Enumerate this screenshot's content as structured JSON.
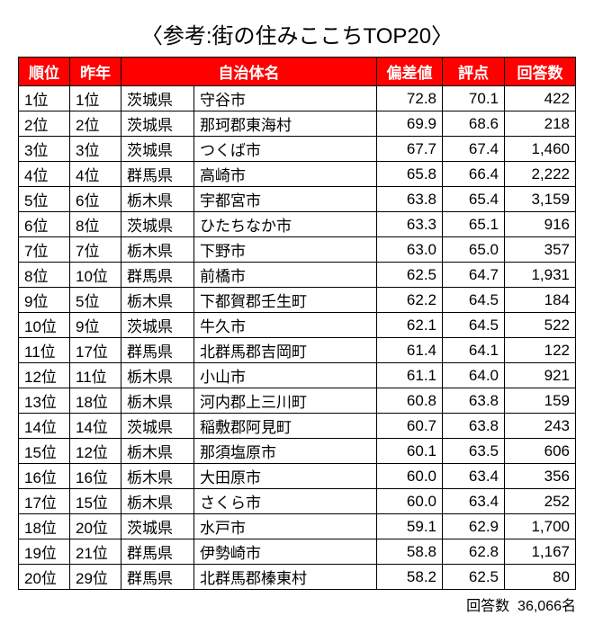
{
  "title": "〈参考:街の住みここちTOP20〉",
  "headers": {
    "rank": "順位",
    "prev": "昨年",
    "municipality": "自治体名",
    "deviation": "偏差値",
    "score": "評点",
    "responses": "回答数"
  },
  "colors": {
    "header_bg": "#ff0000",
    "header_fg": "#ffffff",
    "border": "#000000",
    "cell_bg": "#ffffff"
  },
  "rows": [
    {
      "rank": "1位",
      "prev": "1位",
      "pref": "茨城県",
      "city": "守谷市",
      "dev": "72.8",
      "score": "70.1",
      "resp": "422"
    },
    {
      "rank": "2位",
      "prev": "2位",
      "pref": "茨城県",
      "city": "那珂郡東海村",
      "dev": "69.9",
      "score": "68.6",
      "resp": "218"
    },
    {
      "rank": "3位",
      "prev": "3位",
      "pref": "茨城県",
      "city": "つくば市",
      "dev": "67.7",
      "score": "67.4",
      "resp": "1,460"
    },
    {
      "rank": "4位",
      "prev": "4位",
      "pref": "群馬県",
      "city": "高崎市",
      "dev": "65.8",
      "score": "66.4",
      "resp": "2,222"
    },
    {
      "rank": "5位",
      "prev": "6位",
      "pref": "栃木県",
      "city": "宇都宮市",
      "dev": "63.8",
      "score": "65.4",
      "resp": "3,159"
    },
    {
      "rank": "6位",
      "prev": "8位",
      "pref": "茨城県",
      "city": "ひたちなか市",
      "dev": "63.3",
      "score": "65.1",
      "resp": "916"
    },
    {
      "rank": "7位",
      "prev": "7位",
      "pref": "栃木県",
      "city": "下野市",
      "dev": "63.0",
      "score": "65.0",
      "resp": "357"
    },
    {
      "rank": "8位",
      "prev": "10位",
      "pref": "群馬県",
      "city": "前橋市",
      "dev": "62.5",
      "score": "64.7",
      "resp": "1,931"
    },
    {
      "rank": "9位",
      "prev": "5位",
      "pref": "栃木県",
      "city": "下都賀郡壬生町",
      "dev": "62.2",
      "score": "64.5",
      "resp": "184"
    },
    {
      "rank": "10位",
      "prev": "9位",
      "pref": "茨城県",
      "city": "牛久市",
      "dev": "62.1",
      "score": "64.5",
      "resp": "522"
    },
    {
      "rank": "11位",
      "prev": "17位",
      "pref": "群馬県",
      "city": "北群馬郡吉岡町",
      "dev": "61.4",
      "score": "64.1",
      "resp": "122"
    },
    {
      "rank": "12位",
      "prev": "11位",
      "pref": "栃木県",
      "city": "小山市",
      "dev": "61.1",
      "score": "64.0",
      "resp": "921"
    },
    {
      "rank": "13位",
      "prev": "18位",
      "pref": "栃木県",
      "city": "河内郡上三川町",
      "dev": "60.8",
      "score": "63.8",
      "resp": "159"
    },
    {
      "rank": "14位",
      "prev": "14位",
      "pref": "茨城県",
      "city": "稲敷郡阿見町",
      "dev": "60.7",
      "score": "63.8",
      "resp": "243"
    },
    {
      "rank": "15位",
      "prev": "12位",
      "pref": "栃木県",
      "city": "那須塩原市",
      "dev": "60.1",
      "score": "63.5",
      "resp": "606"
    },
    {
      "rank": "16位",
      "prev": "16位",
      "pref": "栃木県",
      "city": "大田原市",
      "dev": "60.0",
      "score": "63.4",
      "resp": "356"
    },
    {
      "rank": "17位",
      "prev": "15位",
      "pref": "栃木県",
      "city": "さくら市",
      "dev": "60.0",
      "score": "63.4",
      "resp": "252"
    },
    {
      "rank": "18位",
      "prev": "20位",
      "pref": "茨城県",
      "city": "水戸市",
      "dev": "59.1",
      "score": "62.9",
      "resp": "1,700"
    },
    {
      "rank": "19位",
      "prev": "21位",
      "pref": "群馬県",
      "city": "伊勢崎市",
      "dev": "58.8",
      "score": "62.8",
      "resp": "1,167"
    },
    {
      "rank": "20位",
      "prev": "29位",
      "pref": "群馬県",
      "city": "北群馬郡榛東村",
      "dev": "58.2",
      "score": "62.5",
      "resp": "80"
    }
  ],
  "footer": {
    "label": "回答数",
    "value": "36,066名"
  }
}
